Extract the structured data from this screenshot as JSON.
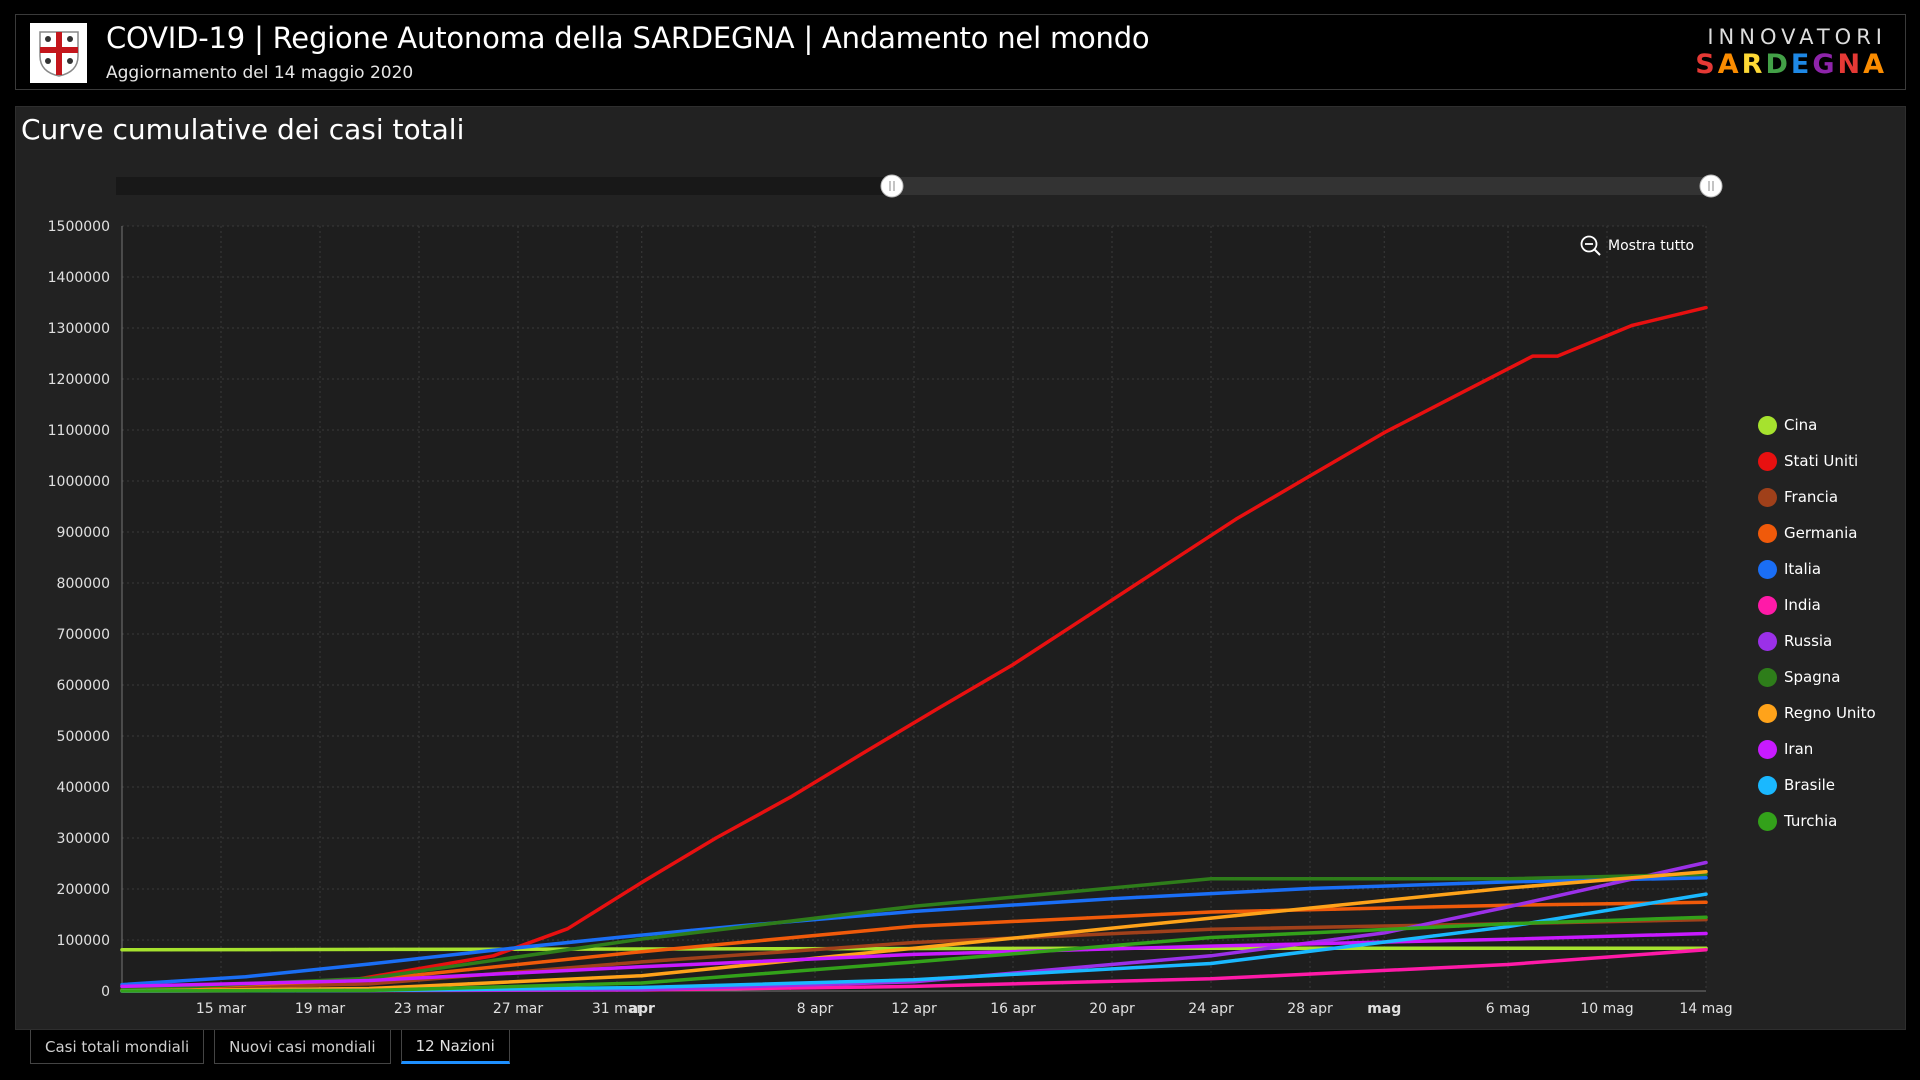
{
  "header": {
    "title": "COVID-19 | Regione Autonoma della SARDEGNA | Andamento nel mondo",
    "subtitle": "Aggiornamento del 14 maggio 2020",
    "brand_top": "INNOVATORI",
    "brand_bottom": "SARDEGNA",
    "brand_colors": [
      "#e53935",
      "#fb8c00",
      "#fdd835",
      "#43a047",
      "#1e88e5",
      "#8e24aa",
      "#e53935",
      "#fb8c00"
    ]
  },
  "panel": {
    "title": "Curve cumulative dei casi totali",
    "show_all_label": "Mostra tutto",
    "zoom_icon": "zoom-out-icon"
  },
  "tabs": [
    {
      "label": "Casi totali mondiali",
      "active": false
    },
    {
      "label": "Nuovi casi mondiali",
      "active": false
    },
    {
      "label": "12 Nazioni",
      "active": true
    }
  ],
  "chart_data": {
    "type": "line",
    "title": "Curve cumulative dei casi totali",
    "xlabel": "",
    "ylabel": "",
    "ylim": [
      0,
      1500000
    ],
    "y_ticks": [
      0,
      100000,
      200000,
      300000,
      400000,
      500000,
      600000,
      700000,
      800000,
      900000,
      1000000,
      1100000,
      1200000,
      1300000,
      1400000,
      1500000
    ],
    "x_range": [
      "2020-03-11",
      "2020-05-14"
    ],
    "x_ticks": [
      {
        "date": "2020-03-15",
        "label": "15 mar",
        "bold": false
      },
      {
        "date": "2020-03-19",
        "label": "19 mar",
        "bold": false
      },
      {
        "date": "2020-03-23",
        "label": "23 mar",
        "bold": false
      },
      {
        "date": "2020-03-27",
        "label": "27 mar",
        "bold": false
      },
      {
        "date": "2020-03-31",
        "label": "31 mar",
        "bold": false
      },
      {
        "date": "2020-04-01",
        "label": "apr",
        "bold": true
      },
      {
        "date": "2020-04-08",
        "label": "8 apr",
        "bold": false
      },
      {
        "date": "2020-04-12",
        "label": "12 apr",
        "bold": false
      },
      {
        "date": "2020-04-16",
        "label": "16 apr",
        "bold": false
      },
      {
        "date": "2020-04-20",
        "label": "20 apr",
        "bold": false
      },
      {
        "date": "2020-04-24",
        "label": "24 apr",
        "bold": false
      },
      {
        "date": "2020-04-28",
        "label": "28 apr",
        "bold": false
      },
      {
        "date": "2020-05-01",
        "label": "mag",
        "bold": true
      },
      {
        "date": "2020-05-06",
        "label": "6 mag",
        "bold": false
      },
      {
        "date": "2020-05-10",
        "label": "10 mag",
        "bold": false
      },
      {
        "date": "2020-05-14",
        "label": "14 mag",
        "bold": false
      }
    ],
    "grid": true,
    "legend_position": "right",
    "scrollbar": {
      "range": [
        "2020-03-11",
        "2020-05-14"
      ]
    },
    "series": [
      {
        "name": "Cina",
        "color": "#a6e22e",
        "points": [
          [
            "2020-03-11",
            80800
          ],
          [
            "2020-04-01",
            82300
          ],
          [
            "2020-04-20",
            84000
          ],
          [
            "2020-05-14",
            84000
          ]
        ]
      },
      {
        "name": "Stati Uniti",
        "color": "#e81010",
        "points": [
          [
            "2020-03-11",
            1200
          ],
          [
            "2020-03-20",
            19000
          ],
          [
            "2020-03-23",
            44000
          ],
          [
            "2020-03-26",
            69000
          ],
          [
            "2020-03-29",
            122000
          ],
          [
            "2020-04-01",
            213000
          ],
          [
            "2020-04-04",
            300000
          ],
          [
            "2020-04-07",
            380000
          ],
          [
            "2020-04-10",
            468000
          ],
          [
            "2020-04-13",
            555000
          ],
          [
            "2020-04-16",
            640000
          ],
          [
            "2020-04-19",
            735000
          ],
          [
            "2020-04-22",
            830000
          ],
          [
            "2020-04-25",
            925000
          ],
          [
            "2020-04-28",
            1010000
          ],
          [
            "2020-05-01",
            1095000
          ],
          [
            "2020-05-04",
            1170000
          ],
          [
            "2020-05-07",
            1245000
          ],
          [
            "2020-05-08",
            1245000
          ],
          [
            "2020-05-11",
            1305000
          ],
          [
            "2020-05-14",
            1340000
          ]
        ]
      },
      {
        "name": "Francia",
        "color": "#a0401a",
        "points": [
          [
            "2020-03-11",
            2300
          ],
          [
            "2020-03-21",
            14000
          ],
          [
            "2020-04-01",
            57000
          ],
          [
            "2020-04-12",
            95000
          ],
          [
            "2020-04-24",
            121000
          ],
          [
            "2020-05-06",
            132000
          ],
          [
            "2020-05-14",
            140000
          ]
        ]
      },
      {
        "name": "Germania",
        "color": "#f05a0a",
        "points": [
          [
            "2020-03-11",
            1900
          ],
          [
            "2020-03-21",
            22000
          ],
          [
            "2020-04-01",
            77000
          ],
          [
            "2020-04-12",
            127000
          ],
          [
            "2020-04-24",
            155000
          ],
          [
            "2020-05-06",
            168000
          ],
          [
            "2020-05-14",
            174000
          ]
        ]
      },
      {
        "name": "Italia",
        "color": "#1a6ef5",
        "points": [
          [
            "2020-03-11",
            12500
          ],
          [
            "2020-03-16",
            28000
          ],
          [
            "2020-03-21",
            53000
          ],
          [
            "2020-03-26",
            80000
          ],
          [
            "2020-03-31",
            105000
          ],
          [
            "2020-04-05",
            128000
          ],
          [
            "2020-04-12",
            156000
          ],
          [
            "2020-04-20",
            181000
          ],
          [
            "2020-04-28",
            201000
          ],
          [
            "2020-05-06",
            214000
          ],
          [
            "2020-05-14",
            222000
          ]
        ]
      },
      {
        "name": "India",
        "color": "#ff1aa8",
        "points": [
          [
            "2020-03-11",
            60
          ],
          [
            "2020-04-01",
            1900
          ],
          [
            "2020-04-12",
            9000
          ],
          [
            "2020-04-24",
            24000
          ],
          [
            "2020-05-06",
            52000
          ],
          [
            "2020-05-14",
            81000
          ]
        ]
      },
      {
        "name": "Russia",
        "color": "#9b30e8",
        "points": [
          [
            "2020-03-11",
            20
          ],
          [
            "2020-04-01",
            2800
          ],
          [
            "2020-04-12",
            18000
          ],
          [
            "2020-04-24",
            69000
          ],
          [
            "2020-05-01",
            114000
          ],
          [
            "2020-05-06",
            165000
          ],
          [
            "2020-05-14",
            252000
          ]
        ]
      },
      {
        "name": "Spagna",
        "color": "#2e7d1a",
        "points": [
          [
            "2020-03-11",
            2300
          ],
          [
            "2020-03-21",
            25000
          ],
          [
            "2020-04-01",
            102000
          ],
          [
            "2020-04-12",
            166000
          ],
          [
            "2020-04-24",
            220000
          ],
          [
            "2020-05-06",
            220000
          ],
          [
            "2020-05-14",
            229000
          ]
        ]
      },
      {
        "name": "Regno Unito",
        "color": "#ffa31a",
        "points": [
          [
            "2020-03-11",
            460
          ],
          [
            "2020-03-21",
            5000
          ],
          [
            "2020-04-01",
            30000
          ],
          [
            "2020-04-12",
            84000
          ],
          [
            "2020-04-24",
            143000
          ],
          [
            "2020-05-06",
            202000
          ],
          [
            "2020-05-14",
            234000
          ]
        ]
      },
      {
        "name": "Iran",
        "color": "#c81aff",
        "points": [
          [
            "2020-03-11",
            9000
          ],
          [
            "2020-03-21",
            20600
          ],
          [
            "2020-04-01",
            47600
          ],
          [
            "2020-04-12",
            71700
          ],
          [
            "2020-04-24",
            88000
          ],
          [
            "2020-05-06",
            101600
          ],
          [
            "2020-05-14",
            112700
          ]
        ]
      },
      {
        "name": "Brasile",
        "color": "#1ab8ff",
        "points": [
          [
            "2020-03-11",
            50
          ],
          [
            "2020-03-21",
            1000
          ],
          [
            "2020-04-01",
            6800
          ],
          [
            "2020-04-12",
            22000
          ],
          [
            "2020-04-24",
            54000
          ],
          [
            "2020-05-06",
            126000
          ],
          [
            "2020-05-14",
            190000
          ]
        ]
      },
      {
        "name": "Turchia",
        "color": "#33a11a",
        "points": [
          [
            "2020-03-11",
            1
          ],
          [
            "2020-03-21",
            1200
          ],
          [
            "2020-04-01",
            15700
          ],
          [
            "2020-04-12",
            56900
          ],
          [
            "2020-04-24",
            104900
          ],
          [
            "2020-05-06",
            131700
          ],
          [
            "2020-05-14",
            144700
          ]
        ]
      }
    ]
  }
}
